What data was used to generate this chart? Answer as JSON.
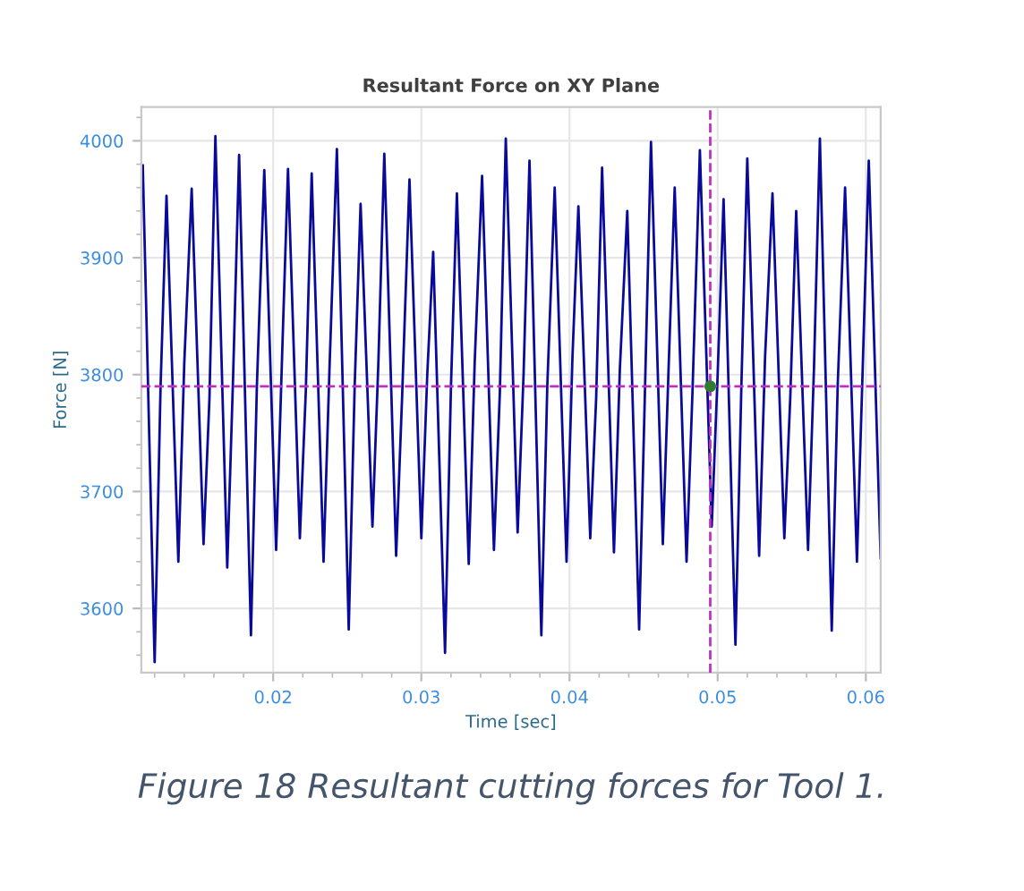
{
  "chart_data": {
    "type": "line",
    "title": "Resultant Force on XY Plane",
    "xlabel": "Time [sec]",
    "ylabel": "Force [N]",
    "annotations": [
      "Figure 18 Resultant cutting forces for Tool 1."
    ],
    "xlim": [
      0.0111,
      0.061
    ],
    "ylim": [
      3545,
      4029
    ],
    "xticks": [
      0.02,
      0.03,
      0.04,
      0.05,
      0.06
    ],
    "yticks": [
      3600,
      3700,
      3800,
      3900,
      4000
    ],
    "grid": true,
    "marker": "none",
    "line_style": "solid",
    "ref_lines": [
      {
        "axis": "x",
        "value": 0.0495,
        "color": "#c030c0",
        "line_style": "dashed"
      },
      {
        "axis": "y",
        "value": 3790,
        "color": "#c030c0",
        "line_style": "dashed"
      }
    ],
    "series": [
      {
        "color": "#0a0a9a",
        "x": [
          0.0112,
          0.012,
          0.0124,
          0.0128,
          0.0136,
          0.014,
          0.0145,
          0.0153,
          0.0157,
          0.0161,
          0.0169,
          0.0173,
          0.0177,
          0.0185,
          0.0189,
          0.0194,
          0.0202,
          0.0206,
          0.021,
          0.0218,
          0.0222,
          0.0226,
          0.0234,
          0.0238,
          0.0243,
          0.0251,
          0.0255,
          0.0259,
          0.0267,
          0.0271,
          0.0275,
          0.0283,
          0.0287,
          0.0292,
          0.03,
          0.0304,
          0.0308,
          0.0316,
          0.032,
          0.0324,
          0.0332,
          0.0336,
          0.0341,
          0.0349,
          0.0353,
          0.0357,
          0.0365,
          0.0369,
          0.0373,
          0.0381,
          0.0385,
          0.039,
          0.0398,
          0.0402,
          0.0406,
          0.0414,
          0.0418,
          0.0422,
          0.043,
          0.0434,
          0.0439,
          0.0447,
          0.0451,
          0.0455,
          0.0463,
          0.0467,
          0.0471,
          0.0479,
          0.0483,
          0.0488,
          0.0496,
          0.05,
          0.0504,
          0.0512,
          0.0516,
          0.052,
          0.0528,
          0.0532,
          0.0537,
          0.0545,
          0.0549,
          0.0553,
          0.0561,
          0.0565,
          0.0569,
          0.0577,
          0.0581,
          0.0586,
          0.0594,
          0.0598,
          0.0602,
          0.061
        ],
        "values": [
          3979,
          3554,
          3790,
          3953,
          3640,
          3810,
          3959,
          3655,
          3780,
          4004,
          3635,
          3800,
          3988,
          3577,
          3790,
          3975,
          3650,
          3815,
          3976,
          3660,
          3785,
          3972,
          3640,
          3805,
          3993,
          3582,
          3790,
          3946,
          3670,
          3810,
          3989,
          3645,
          3780,
          3967,
          3660,
          3800,
          3905,
          3562,
          3790,
          3955,
          3638,
          3810,
          3970,
          3650,
          3785,
          4002,
          3665,
          3800,
          3983,
          3577,
          3790,
          3960,
          3640,
          3815,
          3944,
          3660,
          3780,
          3977,
          3648,
          3805,
          3940,
          3582,
          3790,
          3999,
          3655,
          3810,
          3960,
          3640,
          3785,
          3992,
          3670,
          3800,
          3950,
          3569,
          3790,
          3985,
          3645,
          3815,
          3955,
          3660,
          3780,
          3940,
          3650,
          3805,
          4002,
          3581,
          3790,
          3960,
          3640,
          3810,
          3983,
          3643
        ]
      },
      {
        "type": "scatter",
        "color": "#2e7d32",
        "x": [
          0.0495
        ],
        "values": [
          3790
        ],
        "marker": "circle"
      }
    ]
  }
}
